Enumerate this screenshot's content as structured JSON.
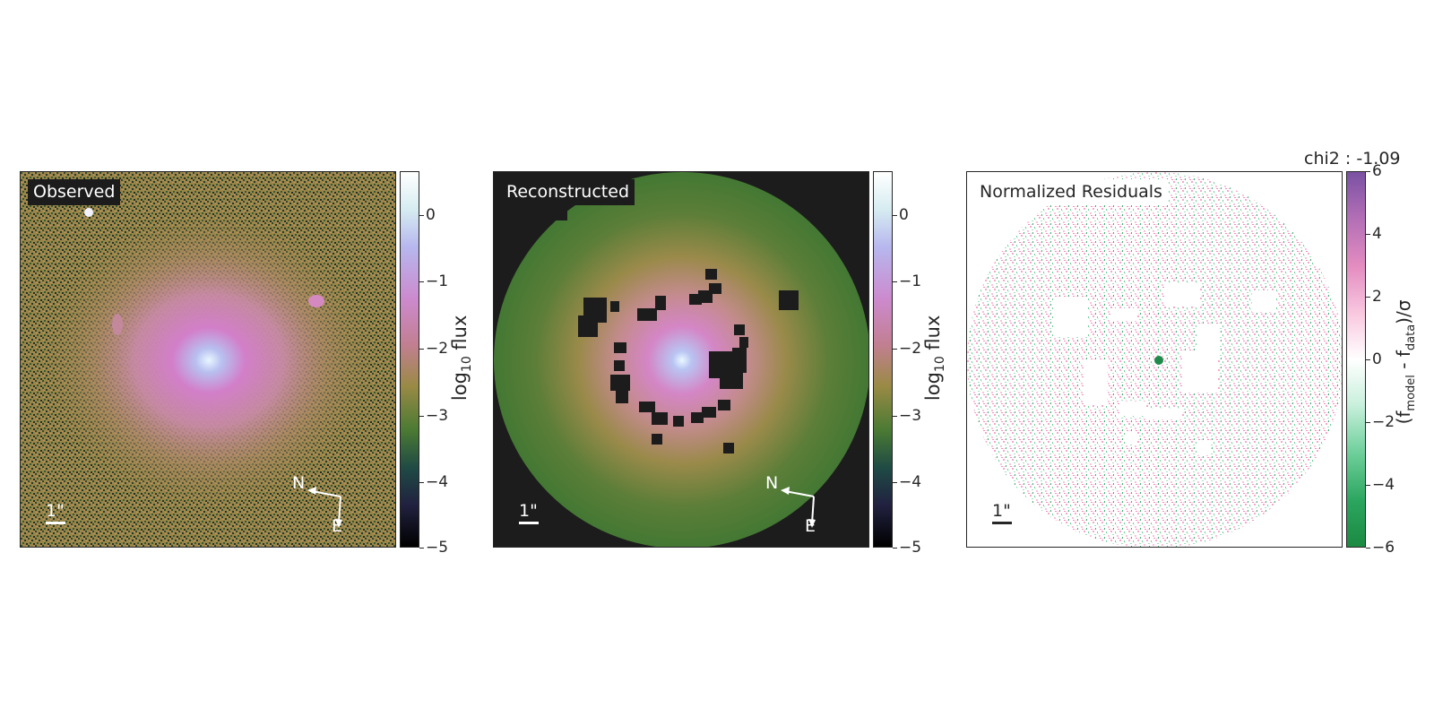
{
  "panels": {
    "observed": {
      "label": "Observed",
      "scalebar_label": "1\"",
      "compass_n": "N",
      "compass_e": "E"
    },
    "reconstructed": {
      "label": "Reconstructed",
      "scalebar_label": "1\"",
      "compass_n": "N",
      "compass_e": "E"
    },
    "residuals": {
      "label": "Normalized Residuals",
      "scalebar_label": "1\"",
      "chi2_text": "chi2 : -1.09"
    }
  },
  "colorbars": {
    "flux": {
      "ticks": [
        "0",
        "−1",
        "−2",
        "−3",
        "−4",
        "−5"
      ],
      "label_prefix": "log",
      "label_sub": "10",
      "label_suffix": " flux"
    },
    "residual": {
      "ticks": [
        "6",
        "4",
        "2",
        "0",
        "−2",
        "−4",
        "−6"
      ],
      "label_open": "(f",
      "label_sub1": "model",
      "label_mid": " - f",
      "label_sub2": "data",
      "label_close": ")/σ"
    }
  }
}
